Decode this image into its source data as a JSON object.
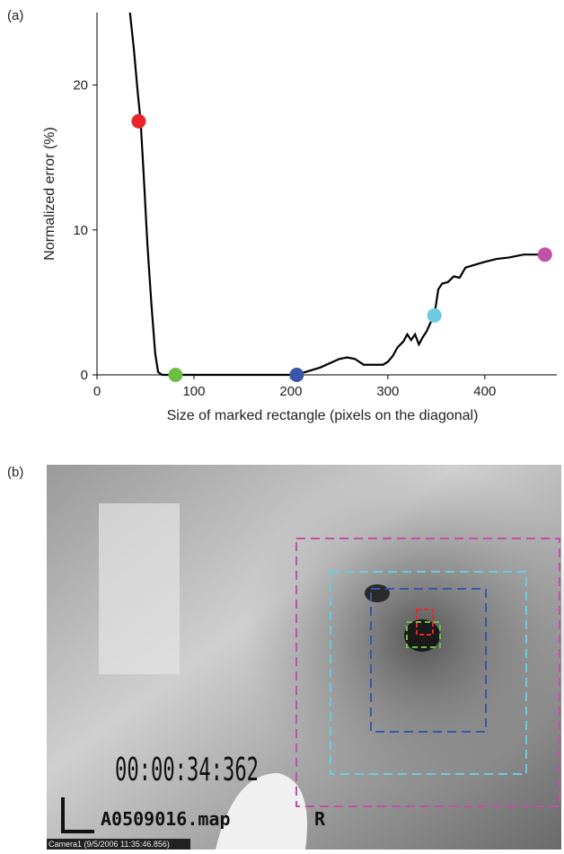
{
  "chart_data": {
    "type": "line",
    "panel_label": "(a)",
    "x_label": "Size of marked rectangle (pixels on the diagonal)",
    "y_label": "Normalized error (%)",
    "x": [
      34,
      38,
      42,
      45,
      48,
      52,
      56,
      60,
      63,
      67,
      80,
      120,
      160,
      200,
      210,
      220,
      230,
      240,
      250,
      258,
      266,
      275,
      285,
      295,
      300,
      305,
      310,
      316,
      320,
      324,
      328,
      332,
      336,
      340,
      344,
      348,
      352,
      356,
      362,
      368,
      374,
      380,
      390,
      400,
      412,
      425,
      440,
      452,
      462
    ],
    "values": [
      25,
      22.5,
      19.5,
      17.5,
      14,
      9,
      5,
      1.5,
      0.2,
      0,
      0,
      0,
      0,
      0,
      0.1,
      0.3,
      0.5,
      0.8,
      1.1,
      1.2,
      1.1,
      0.7,
      0.7,
      0.7,
      0.9,
      1.3,
      1.9,
      2.3,
      2.8,
      2.4,
      2.8,
      2.1,
      2.6,
      3.0,
      3.6,
      4.1,
      5.9,
      6.3,
      6.4,
      6.8,
      6.7,
      7.4,
      7.6,
      7.8,
      8.0,
      8.1,
      8.3,
      8.3,
      8.3
    ],
    "color": "#000000",
    "markers": {
      "x": [
        43,
        81,
        206,
        348,
        462
      ],
      "values": [
        17.5,
        0,
        0,
        4.1,
        8.3
      ],
      "colors": [
        "#e8262a",
        "#6cbf44",
        "#3a56a8",
        "#6ccbe0",
        "#c050a8"
      ]
    },
    "xlim": [
      0,
      465
    ],
    "ylim": [
      0,
      25
    ],
    "xticks": [
      0,
      100,
      200,
      300,
      400
    ],
    "yticks": [
      0,
      10,
      20
    ]
  },
  "image": {
    "panel_label": "(b)",
    "timer": "00:00:34:362",
    "filename": "A0509016.map",
    "flag": "R",
    "caption": "Camera1 (9/5/2006 11:35:46.856)"
  }
}
